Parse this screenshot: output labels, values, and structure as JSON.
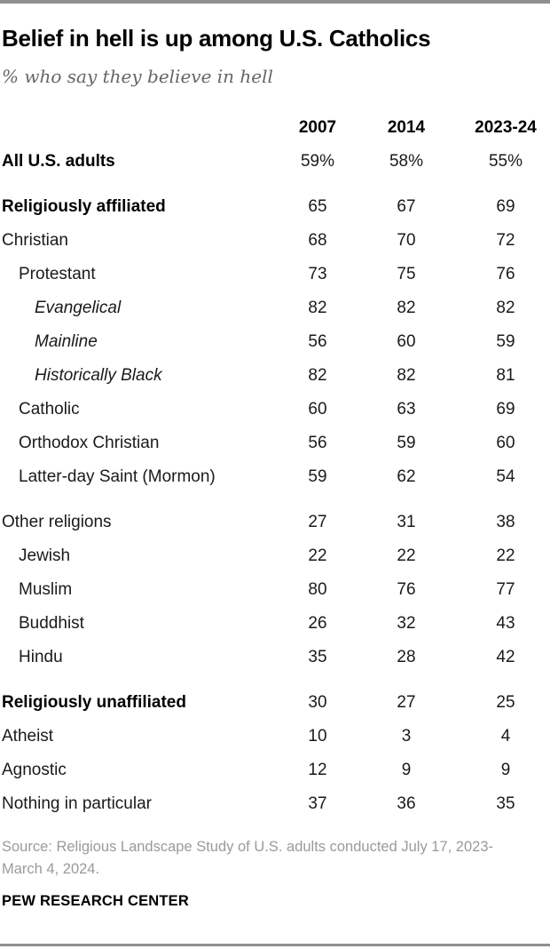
{
  "header": {
    "title": "Belief in hell is up among U.S. Catholics",
    "subtitle": "% who say they believe in hell"
  },
  "table": {
    "columns": [
      "2007",
      "2014",
      "2023-24"
    ],
    "rows": [
      {
        "label": "All U.S. adults",
        "style": "bold",
        "indent": 0,
        "gap_before": false,
        "values": [
          "59%",
          "58%",
          "55%"
        ]
      },
      {
        "label": "Religiously affiliated",
        "style": "bold",
        "indent": 0,
        "gap_before": true,
        "values": [
          "65",
          "67",
          "69"
        ]
      },
      {
        "label": "Christian",
        "style": "normal",
        "indent": 0,
        "gap_before": false,
        "values": [
          "68",
          "70",
          "72"
        ]
      },
      {
        "label": "Protestant",
        "style": "normal",
        "indent": 1,
        "gap_before": false,
        "values": [
          "73",
          "75",
          "76"
        ]
      },
      {
        "label": "Evangelical",
        "style": "italic",
        "indent": 2,
        "gap_before": false,
        "values": [
          "82",
          "82",
          "82"
        ]
      },
      {
        "label": "Mainline",
        "style": "italic",
        "indent": 2,
        "gap_before": false,
        "values": [
          "56",
          "60",
          "59"
        ]
      },
      {
        "label": "Historically Black",
        "style": "italic",
        "indent": 2,
        "gap_before": false,
        "values": [
          "82",
          "82",
          "81"
        ]
      },
      {
        "label": "Catholic",
        "style": "normal",
        "indent": 1,
        "gap_before": false,
        "values": [
          "60",
          "63",
          "69"
        ]
      },
      {
        "label": "Orthodox Christian",
        "style": "normal",
        "indent": 1,
        "gap_before": false,
        "values": [
          "56",
          "59",
          "60"
        ]
      },
      {
        "label": "Latter-day Saint (Mormon)",
        "style": "normal",
        "indent": 1,
        "gap_before": false,
        "values": [
          "59",
          "62",
          "54"
        ]
      },
      {
        "label": "Other religions",
        "style": "normal",
        "indent": 0,
        "gap_before": true,
        "values": [
          "27",
          "31",
          "38"
        ]
      },
      {
        "label": "Jewish",
        "style": "normal",
        "indent": 1,
        "gap_before": false,
        "values": [
          "22",
          "22",
          "22"
        ]
      },
      {
        "label": "Muslim",
        "style": "normal",
        "indent": 1,
        "gap_before": false,
        "values": [
          "80",
          "76",
          "77"
        ]
      },
      {
        "label": "Buddhist",
        "style": "normal",
        "indent": 1,
        "gap_before": false,
        "values": [
          "26",
          "32",
          "43"
        ]
      },
      {
        "label": "Hindu",
        "style": "normal",
        "indent": 1,
        "gap_before": false,
        "values": [
          "35",
          "28",
          "42"
        ]
      },
      {
        "label": "Religiously unaffiliated",
        "style": "bold",
        "indent": 0,
        "gap_before": true,
        "values": [
          "30",
          "27",
          "25"
        ]
      },
      {
        "label": "Atheist",
        "style": "normal",
        "indent": 0,
        "gap_before": false,
        "values": [
          "10",
          "3",
          "4"
        ]
      },
      {
        "label": "Agnostic",
        "style": "normal",
        "indent": 0,
        "gap_before": false,
        "values": [
          "12",
          "9",
          "9"
        ]
      },
      {
        "label": "Nothing in particular",
        "style": "normal",
        "indent": 0,
        "gap_before": false,
        "values": [
          "37",
          "36",
          "35"
        ]
      }
    ]
  },
  "footer": {
    "source": "Source: Religious Landscape Study of U.S. adults conducted July 17, 2023-March 4, 2024.",
    "brand": "PEW RESEARCH CENTER"
  },
  "colors": {
    "rule_gray": "#8f8f8f",
    "subtitle_gray": "#666666",
    "source_gray": "#9a9a9a",
    "text_black": "#000000"
  },
  "chart_data": {
    "type": "table",
    "title": "Belief in hell is up among U.S. Catholics",
    "subtitle": "% who say they believe in hell",
    "unit": "percent",
    "columns": [
      "2007",
      "2014",
      "2023-24"
    ],
    "rows": [
      {
        "group": "All U.S. adults",
        "values": [
          59,
          58,
          55
        ]
      },
      {
        "group": "Religiously affiliated",
        "values": [
          65,
          67,
          69
        ]
      },
      {
        "group": "Christian",
        "values": [
          68,
          70,
          72
        ]
      },
      {
        "group": "Protestant",
        "values": [
          73,
          75,
          76
        ]
      },
      {
        "group": "Evangelical",
        "values": [
          82,
          82,
          82
        ]
      },
      {
        "group": "Mainline",
        "values": [
          56,
          60,
          59
        ]
      },
      {
        "group": "Historically Black",
        "values": [
          82,
          82,
          81
        ]
      },
      {
        "group": "Catholic",
        "values": [
          60,
          63,
          69
        ]
      },
      {
        "group": "Orthodox Christian",
        "values": [
          56,
          59,
          60
        ]
      },
      {
        "group": "Latter-day Saint (Mormon)",
        "values": [
          59,
          62,
          54
        ]
      },
      {
        "group": "Other religions",
        "values": [
          27,
          31,
          38
        ]
      },
      {
        "group": "Jewish",
        "values": [
          22,
          22,
          22
        ]
      },
      {
        "group": "Muslim",
        "values": [
          80,
          76,
          77
        ]
      },
      {
        "group": "Buddhist",
        "values": [
          26,
          32,
          43
        ]
      },
      {
        "group": "Hindu",
        "values": [
          35,
          28,
          42
        ]
      },
      {
        "group": "Religiously unaffiliated",
        "values": [
          30,
          27,
          25
        ]
      },
      {
        "group": "Atheist",
        "values": [
          10,
          3,
          4
        ]
      },
      {
        "group": "Agnostic",
        "values": [
          12,
          9,
          9
        ]
      },
      {
        "group": "Nothing in particular",
        "values": [
          37,
          36,
          35
        ]
      }
    ]
  }
}
